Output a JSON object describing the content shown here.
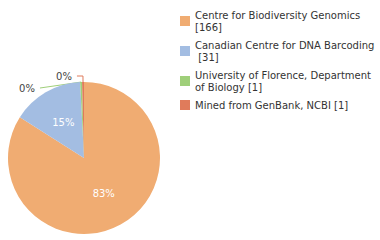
{
  "chart_data": {
    "type": "pie",
    "categories": [
      "Centre for Biodiversity Genomics [166]",
      "Canadian Centre for DNA Barcoding [31]",
      "University of Florence, Department of Biology [1]",
      "Mined from GenBank, NCBI [1]"
    ],
    "values": [
      83,
      15,
      0.4,
      0.4
    ],
    "value_labels": [
      "83%",
      "15%",
      "0%",
      "0%"
    ],
    "colors": [
      "#f0ac72",
      "#a3bde2",
      "#9fcf7a",
      "#e07b5b"
    ],
    "data_labels": true,
    "legend": "top-right"
  }
}
